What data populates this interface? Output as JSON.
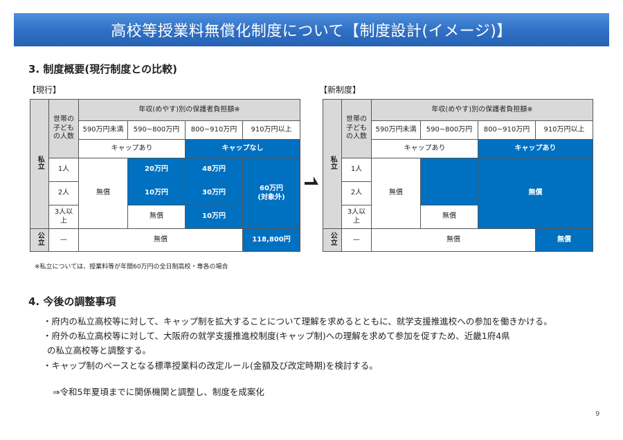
{
  "title": "高校等授業料無償化制度について【制度設計(イメージ)】",
  "section3": "3. 制度概要(現行制度との比較)",
  "current_label": "【現行】",
  "new_label": "【新制度】",
  "table_common": {
    "children_header": "世帯の子どもの人数",
    "income_header": "年収(めやす)別の保護者負担額※",
    "brackets": [
      "590万円未満",
      "590~800万円",
      "800~910万円",
      "910万円以上"
    ],
    "private": "私立",
    "public": "公立",
    "rows": [
      "1人",
      "2人",
      "3人以上"
    ],
    "dash": "—",
    "free": "無償"
  },
  "current": {
    "cap_yes": "キャップあり",
    "cap_no": "キャップなし",
    "cells": {
      "r1_c2": "20万円",
      "r1_c3": "48万円",
      "r2_c2": "10万円",
      "r2_c3": "30万円",
      "r3_c2": "無償",
      "r3_c3": "10万円",
      "col4": "60万円\n(対象外)",
      "public_last": "118,800円"
    }
  },
  "new": {
    "cap_yes": "キャップあり",
    "cap_yes2": "キャップあり",
    "cells": {
      "r3_c2": "無償",
      "blue_free": "無償",
      "public_last": "無償"
    }
  },
  "footnote": "※私立については、授業料等が年間60万円の全日制高校・専各の場合",
  "section4": "4. 今後の調整事項",
  "bullets": [
    "・府内の私立高校等に対して、キャップ制を拡大することについて理解を求めるとともに、就学支援推進校への参加を働きかける。",
    "・府外の私立高校等に対して、大阪府の就学支援推進校制度(キャップ制)への理解を求めて参加を促すため、近畿1府4県",
    "の私立高校等と調整する。",
    "・キャップ制のベースとなる標準授業料の改定ルール(金額及び改定時期)を検討する。"
  ],
  "conclusion": "⇒令和5年夏頃までに関係機関と調整し、制度を成案化",
  "page_number": "9",
  "colors": {
    "banner": "#2f6fc4",
    "cell_blue": "#0070c0",
    "cell_gray": "#d9d9d9"
  }
}
